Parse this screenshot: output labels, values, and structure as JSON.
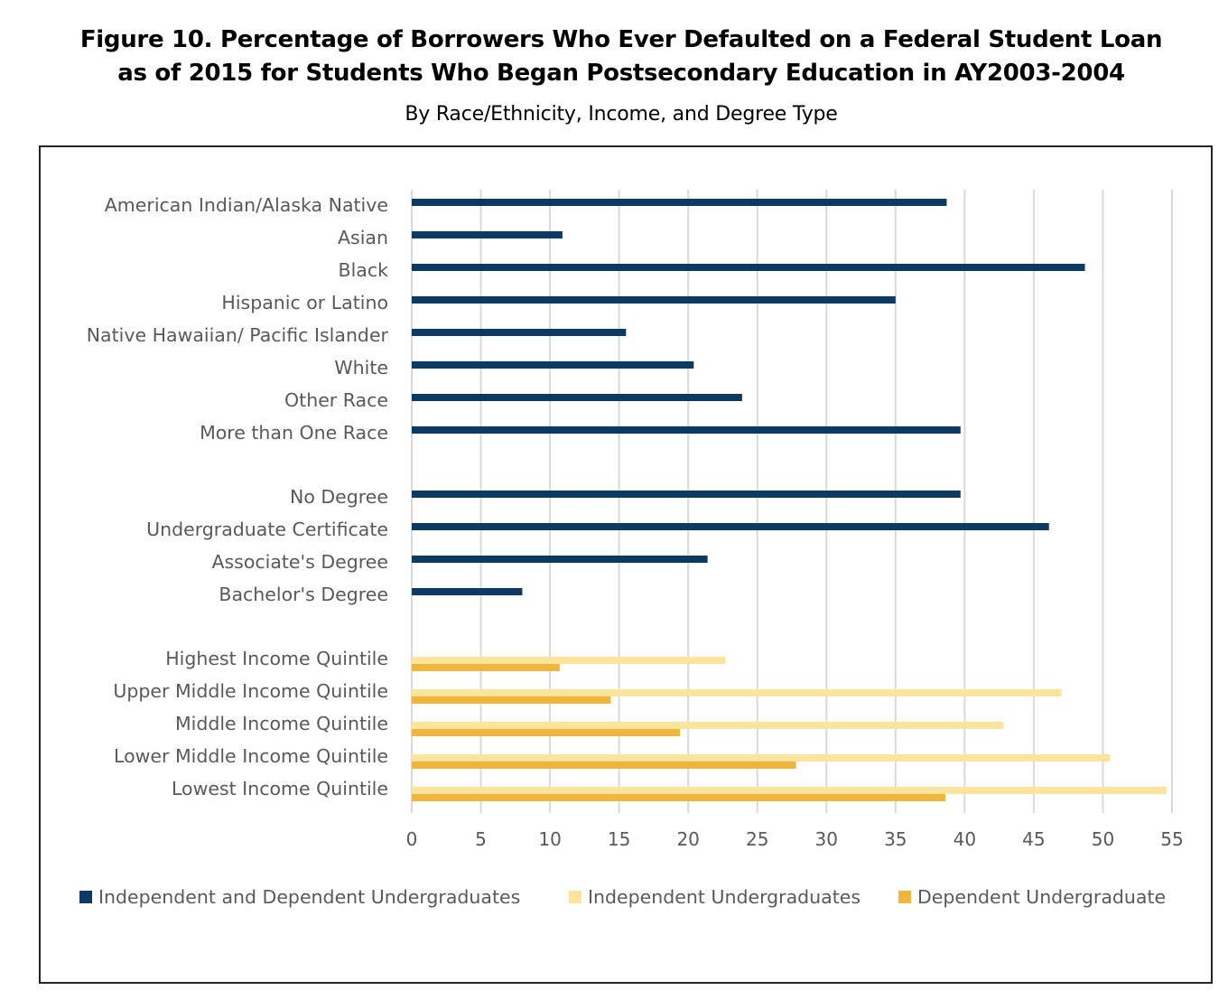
{
  "figure": {
    "title_line1": "Figure 10. Percentage of Borrowers Who Ever Defaulted on a Federal Student Loan",
    "title_line2": "as of 2015 for Students Who Began Postsecondary Education in AY2003-2004",
    "subtitle": "By Race/Ethnicity, Income, and Degree Type"
  },
  "chart_data": {
    "type": "bar",
    "orientation": "horizontal",
    "xlim": [
      0,
      55
    ],
    "xticks": [
      0,
      5,
      10,
      15,
      20,
      25,
      30,
      35,
      40,
      45,
      50,
      55
    ],
    "grid": "vertical",
    "legend_position": "bottom",
    "colors": {
      "Independent and Dependent Undergraduates": "#0d3a62",
      "Independent Undergraduates": "#fde49d",
      "Dependent Undergraduate": "#f0b53b"
    },
    "series": [
      {
        "name": "Independent and Dependent Undergraduates"
      },
      {
        "name": "Independent Undergraduates"
      },
      {
        "name": "Dependent Undergraduate"
      }
    ],
    "groups": [
      {
        "group": "race",
        "rows": [
          {
            "label": "American Indian/Alaska Native",
            "values": {
              "Independent and Dependent Undergraduates": 38.7
            }
          },
          {
            "label": "Asian",
            "values": {
              "Independent and Dependent Undergraduates": 10.9
            }
          },
          {
            "label": "Black",
            "values": {
              "Independent and Dependent Undergraduates": 48.7
            }
          },
          {
            "label": "Hispanic or Latino",
            "values": {
              "Independent and Dependent Undergraduates": 35.0
            }
          },
          {
            "label": "Native Hawaiian/  Pacific Islander",
            "values": {
              "Independent and Dependent Undergraduates": 15.5
            }
          },
          {
            "label": "White",
            "values": {
              "Independent and Dependent Undergraduates": 20.4
            }
          },
          {
            "label": "Other Race",
            "values": {
              "Independent and Dependent Undergraduates": 23.9
            }
          },
          {
            "label": "More than One Race",
            "values": {
              "Independent and Dependent Undergraduates": 39.7
            }
          }
        ]
      },
      {
        "group": "degree",
        "rows": [
          {
            "label": "No Degree",
            "values": {
              "Independent and Dependent Undergraduates": 39.7
            }
          },
          {
            "label": "Undergraduate Certificate",
            "values": {
              "Independent and Dependent Undergraduates": 46.1
            }
          },
          {
            "label": "Associate's Degree",
            "values": {
              "Independent and Dependent Undergraduates": 21.4
            }
          },
          {
            "label": "Bachelor's Degree",
            "values": {
              "Independent and Dependent Undergraduates": 8.0
            }
          }
        ]
      },
      {
        "group": "income",
        "rows": [
          {
            "label": "Highest Income Quintile",
            "values": {
              "Independent Undergraduates": 22.7,
              "Dependent Undergraduate": 10.7
            }
          },
          {
            "label": "Upper Middle Income Quintile",
            "values": {
              "Independent Undergraduates": 47.0,
              "Dependent Undergraduate": 14.4
            }
          },
          {
            "label": "Middle Income Quintile",
            "values": {
              "Independent Undergraduates": 42.8,
              "Dependent Undergraduate": 19.4
            }
          },
          {
            "label": "Lower Middle Income Quintile",
            "values": {
              "Independent Undergraduates": 50.5,
              "Dependent Undergraduate": 27.8
            }
          },
          {
            "label": "Lowest Income Quintile",
            "values": {
              "Independent Undergraduates": 54.6,
              "Dependent Undergraduate": 38.6
            }
          }
        ]
      }
    ]
  }
}
